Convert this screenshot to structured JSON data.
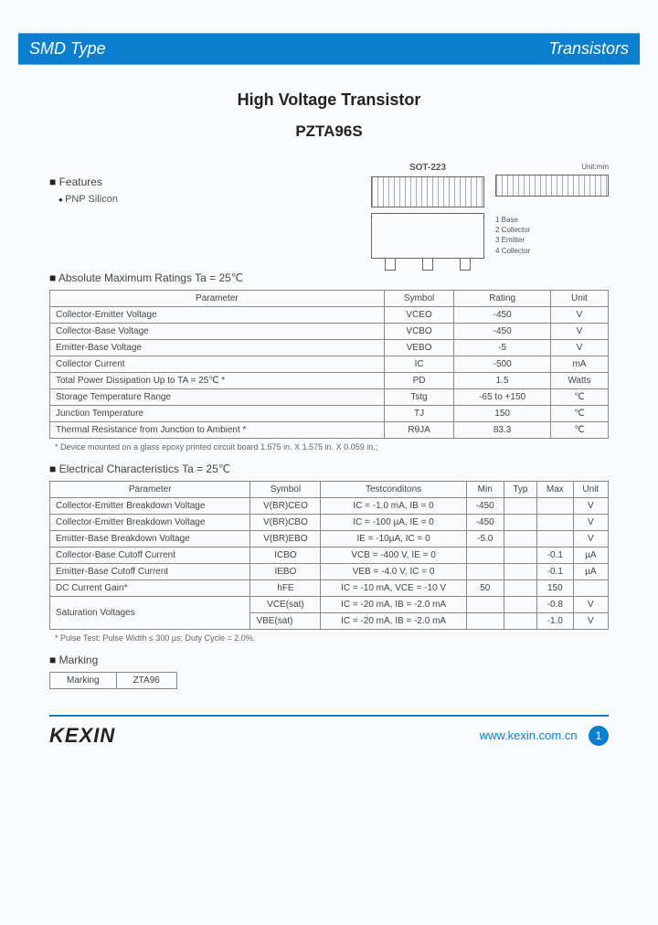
{
  "header": {
    "left": "SMD Type",
    "right": "Transistors"
  },
  "title": "High Voltage Transistor",
  "part": "PZTA96S",
  "features": {
    "heading": "Features",
    "items": [
      "PNP Silicon"
    ]
  },
  "package": {
    "name": "SOT-223",
    "unit_label": "Unit:mm",
    "pins": [
      "1 Base",
      "2 Collector",
      "3 Emitter",
      "4 Collector"
    ]
  },
  "abs_max": {
    "heading": "Absolute Maximum Ratings Ta = 25℃",
    "cols": [
      "Parameter",
      "Symbol",
      "Rating",
      "Unit"
    ],
    "rows": [
      [
        "Collector-Emitter Voltage",
        "VCEO",
        "-450",
        "V"
      ],
      [
        "Collector-Base Voltage",
        "VCBO",
        "-450",
        "V"
      ],
      [
        "Emitter-Base Voltage",
        "VEBO",
        "-5",
        "V"
      ],
      [
        "Collector Current",
        "IC",
        "-500",
        "mA"
      ],
      [
        "Total Power Dissipation Up to TA = 25℃ *",
        "PD",
        "1.5",
        "Watts"
      ],
      [
        "Storage Temperature Range",
        "Tstg",
        "-65 to +150",
        "℃"
      ],
      [
        "Junction Temperature",
        "TJ",
        "150",
        "℃"
      ],
      [
        "Thermal Resistance from Junction to Ambient *",
        "RθJA",
        "83.3",
        "℃"
      ]
    ],
    "note": "* Device mounted on a glass epoxy printed circuit board 1.575 in. X 1.575 in. X 0.059 in.;"
  },
  "elec": {
    "heading": "Electrical Characteristics Ta = 25℃",
    "cols": [
      "Parameter",
      "Symbol",
      "Testconditons",
      "Min",
      "Typ",
      "Max",
      "Unit"
    ],
    "rows": [
      [
        "Collector-Emitter Breakdown Voltage",
        "V(BR)CEO",
        "IC = -1.0 mA, IB = 0",
        "-450",
        "",
        "",
        "V"
      ],
      [
        "Collector-Emitter Breakdown Voltage",
        "V(BR)CBO",
        "IC = -100 µA, IE = 0",
        "-450",
        "",
        "",
        "V"
      ],
      [
        "Emitter-Base Breakdown Voltage",
        "V(BR)EBO",
        "IE = -10µA, IC = 0",
        "-5.0",
        "",
        "",
        "V"
      ],
      [
        "Collector-Base Cutoff Current",
        "ICBO",
        "VCB = -400 V, IE = 0",
        "",
        "",
        "-0.1",
        "µA"
      ],
      [
        "Emitter-Base Cutoff Current",
        "IEBO",
        "VEB = -4.0 V, IC = 0",
        "",
        "",
        "-0.1",
        "µA"
      ],
      [
        "DC Current Gain*",
        "hFE",
        "IC = -10 mA, VCE = -10 V",
        "50",
        "",
        "150",
        ""
      ],
      [
        "Saturation Voltages",
        "VCE(sat)",
        "IC = -20 mA, IB = -2.0 mA",
        "",
        "",
        "-0.8",
        "V"
      ],
      [
        "",
        "VBE(sat)",
        "IC = -20 mA, IB = -2.0 mA",
        "",
        "",
        "-1.0",
        "V"
      ]
    ],
    "note": "* Pulse Test: Pulse Width ≤ 300 µs; Duty Cycle = 2.0%."
  },
  "marking": {
    "heading": "Marking",
    "label": "Marking",
    "value": "ZTA96"
  },
  "footer": {
    "brand": "KEXIN",
    "url": "www.kexin.com.cn",
    "page": "1"
  },
  "colors": {
    "brand_blue": "#0b7fce",
    "background": "#f9fbfd",
    "text": "#333333",
    "border": "#888888"
  }
}
